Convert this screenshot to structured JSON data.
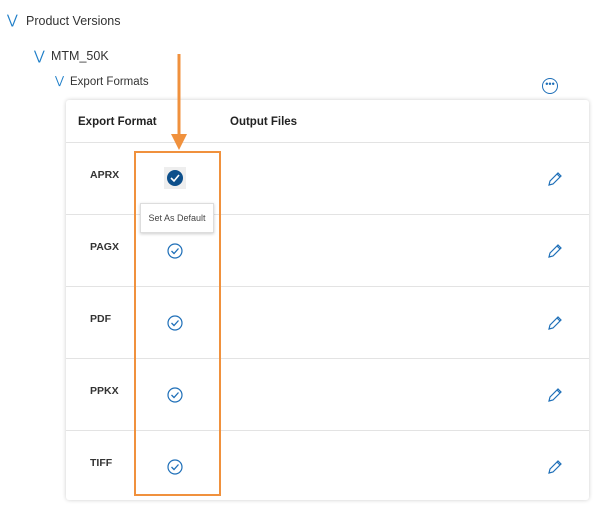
{
  "tree": {
    "root": "Product Versions",
    "child": "MTM_50K",
    "grandchild": "Export Formats"
  },
  "table": {
    "headers": [
      "Export Format",
      "Output Files"
    ],
    "rows": [
      {
        "format": "APRX",
        "is_default": true
      },
      {
        "format": "PAGX",
        "is_default": false
      },
      {
        "format": "PDF",
        "is_default": false
      },
      {
        "format": "PPKX",
        "is_default": false
      },
      {
        "format": "TIFF",
        "is_default": false
      }
    ]
  },
  "tooltip": "Set As Default",
  "colors": {
    "accent": "#1e6fb8",
    "annotation": "#f0913d",
    "default_fill": "#0d4f8b"
  }
}
